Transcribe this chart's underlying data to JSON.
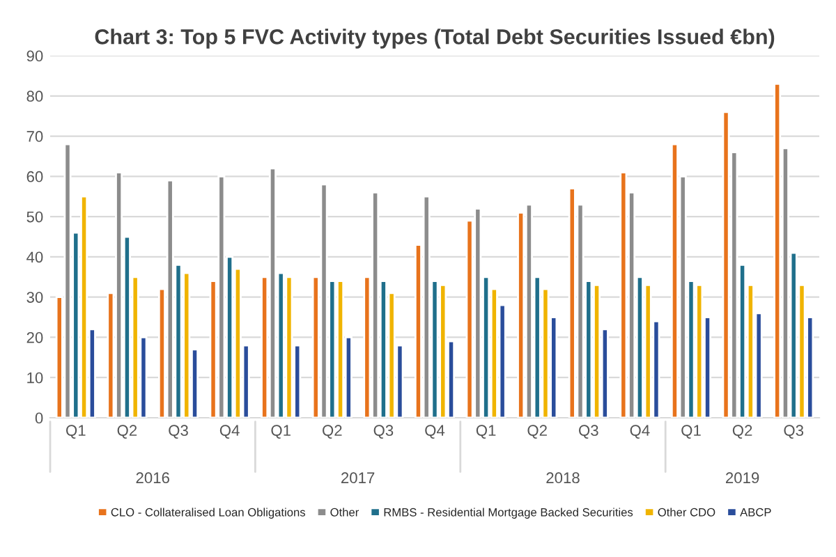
{
  "chart_data": {
    "type": "bar",
    "title": "Chart 3: Top 5 FVC Activity types (Total Debt Securities Issued €bn)",
    "categories": [
      "Q1",
      "Q2",
      "Q3",
      "Q4",
      "Q1",
      "Q2",
      "Q3",
      "Q4",
      "Q1",
      "Q2",
      "Q3",
      "Q4",
      "Q1",
      "Q2",
      "Q3"
    ],
    "annotations": [
      "2016",
      "2017",
      "2018",
      "2019"
    ],
    "series": [
      {
        "name": "CLO - Collateralised Loan Obligations",
        "color": "#e8731c",
        "values": [
          30,
          31,
          32,
          34,
          35,
          35,
          35,
          43,
          49,
          51,
          57,
          61,
          68,
          76,
          83
        ]
      },
      {
        "name": "Other",
        "color": "#8c8c8c",
        "values": [
          68,
          61,
          59,
          60,
          62,
          58,
          56,
          55,
          52,
          53,
          53,
          56,
          60,
          66,
          67
        ]
      },
      {
        "name": "RMBS - Residential Mortgage Backed Securities",
        "color": "#1f6f8b",
        "values": [
          46,
          45,
          38,
          40,
          36,
          34,
          34,
          34,
          35,
          35,
          34,
          35,
          34,
          38,
          41
        ]
      },
      {
        "name": "Other CDO",
        "color": "#f0b400",
        "values": [
          55,
          35,
          36,
          37,
          35,
          34,
          31,
          33,
          32,
          32,
          33,
          33,
          33,
          33,
          33
        ]
      },
      {
        "name": "ABCP",
        "color": "#2a4d9b",
        "values": [
          22,
          20,
          17,
          18,
          18,
          20,
          18,
          19,
          28,
          25,
          22,
          24,
          25,
          26,
          25
        ]
      }
    ],
    "ylim": [
      0,
      90
    ],
    "yticks": [
      0,
      10,
      20,
      30,
      40,
      50,
      60,
      70,
      80,
      90
    ],
    "grid": "y",
    "legend": "bottom"
  }
}
